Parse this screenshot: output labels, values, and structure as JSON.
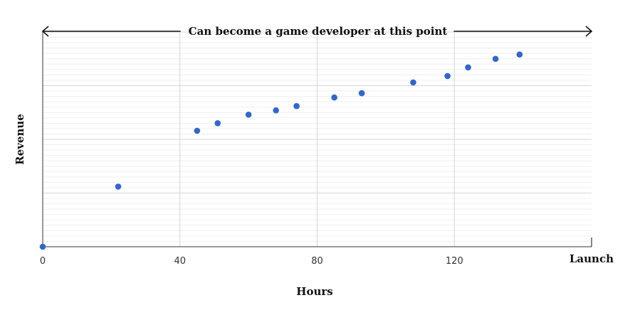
{
  "chart_data": {
    "type": "scatter",
    "title": "",
    "xlabel": "Hours",
    "ylabel": "Revenue",
    "xlim": [
      0,
      160
    ],
    "ylim": [
      0,
      100
    ],
    "x_ticks": [
      0,
      40,
      80,
      120
    ],
    "x_end_label": "Launch",
    "y_ticks_shown": false,
    "grid": true,
    "point_color": "#3366cc",
    "annotation": {
      "text": "Can become a game developer at this point",
      "arrow": "double-headed",
      "span": [
        0,
        160
      ]
    },
    "series": [
      {
        "x": [
          0,
          22,
          45,
          51,
          60,
          68,
          74,
          85,
          93,
          108,
          118,
          124,
          132,
          139
        ],
        "y": [
          0,
          28,
          54,
          57.5,
          61.5,
          63.5,
          65.5,
          69.5,
          71.5,
          76.5,
          79.5,
          83.5,
          87.5,
          89.5
        ]
      }
    ]
  }
}
